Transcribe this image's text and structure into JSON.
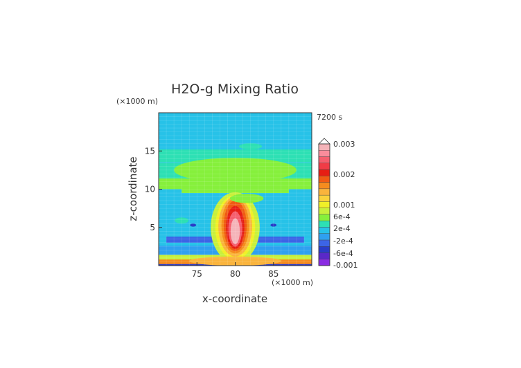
{
  "chart_data": {
    "type": "heatmap",
    "title": "H2O-g Mixing Ratio",
    "xlabel": "x-coordinate",
    "ylabel": "z-coordinate",
    "x_unit": "(×1000 m)",
    "y_unit": "(×1000 m)",
    "time_label": "7200 s",
    "xlim": [
      70,
      90
    ],
    "ylim": [
      0,
      20
    ],
    "x_ticks": [
      75,
      80,
      85
    ],
    "y_ticks": [
      5,
      10,
      15
    ],
    "colorbar": {
      "labels": [
        "0.003",
        "0.002",
        "0.001",
        "6e-4",
        "2e-4",
        "-2e-4",
        "-6e-4",
        "-0.001"
      ],
      "levels": [
        -0.001,
        -0.0008,
        -0.0006,
        -0.0004,
        -0.0002,
        0,
        0.0002,
        0.0004,
        0.0006,
        0.0008,
        0.001,
        0.00125,
        0.0015,
        0.00175,
        0.002,
        0.00225,
        0.0025,
        0.00275,
        0.003
      ],
      "colors": [
        "#8a2be2",
        "#5a28c8",
        "#2a3cc8",
        "#3c64e6",
        "#2fa0f0",
        "#27c2e8",
        "#2de0b4",
        "#86f03c",
        "#c8f03c",
        "#f0f028",
        "#fad23c",
        "#fab43c",
        "#f58c1e",
        "#f05a14",
        "#e61e14",
        "#f03c46",
        "#f55f6e",
        "#fa8c9b",
        "#f5b4b9"
      ]
    },
    "features": [
      {
        "name": "central plume",
        "x_center": 80,
        "z_range": [
          0.5,
          9
        ],
        "peak": 0.0025
      },
      {
        "name": "anvil outflow",
        "z_range": [
          10,
          16
        ],
        "value": 0.0002
      },
      {
        "name": "surface layer",
        "z_range": [
          0,
          1.5
        ],
        "value": 0.001
      }
    ],
    "grid": true
  }
}
